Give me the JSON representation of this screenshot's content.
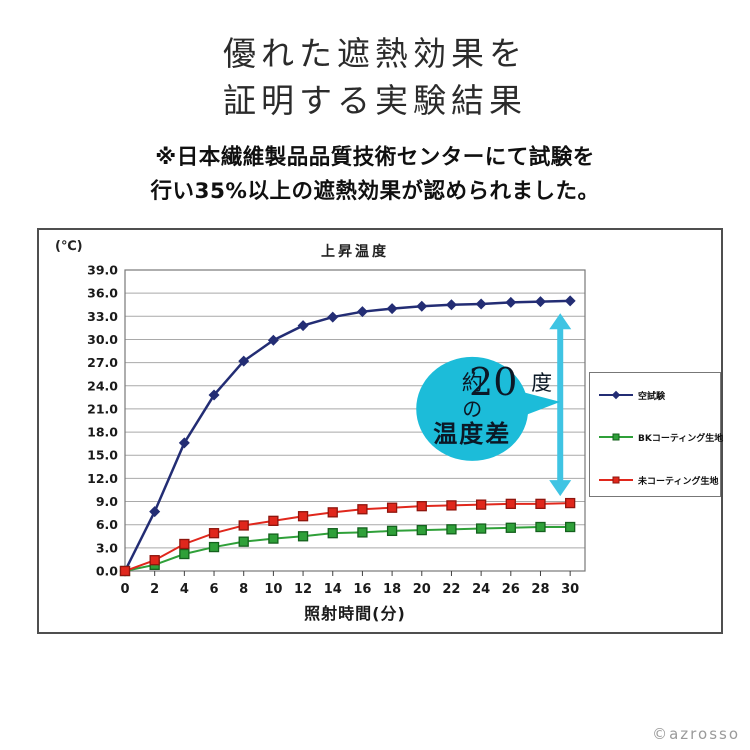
{
  "page": {
    "title_lines": [
      "優れた遮熱効果を",
      "証明する実験結果"
    ],
    "subtitle_lines": [
      "※日本繊維製品品質技術センターにて試験を",
      "行い35%以上の遮熱効果が認められました。"
    ],
    "copyright": "©azrosso"
  },
  "chart_data": {
    "type": "line",
    "title": "上昇温度",
    "y_unit_label": "(℃)",
    "xlabel": "照射時間(分)",
    "x": [
      0,
      2,
      4,
      6,
      8,
      10,
      12,
      14,
      16,
      18,
      20,
      22,
      24,
      26,
      28,
      30
    ],
    "ylim": [
      0,
      39
    ],
    "ytick_step": 3,
    "grid": "horizontal",
    "legend_position": "right",
    "series": [
      {
        "name": "空試験",
        "color": "#232d74",
        "marker": "diamond",
        "marker_edge": "#232d74",
        "values": [
          0.0,
          7.7,
          16.6,
          22.8,
          27.2,
          29.9,
          31.8,
          32.9,
          33.6,
          34.0,
          34.3,
          34.5,
          34.6,
          34.8,
          34.9,
          35.0
        ]
      },
      {
        "name": "BKコーティング生地",
        "color": "#2fa039",
        "marker": "square",
        "marker_edge": "#14611d",
        "values": [
          0.0,
          0.8,
          2.2,
          3.1,
          3.8,
          4.2,
          4.5,
          4.9,
          5.0,
          5.2,
          5.3,
          5.4,
          5.5,
          5.6,
          5.7,
          5.7
        ]
      },
      {
        "name": "未コーティング生地",
        "color": "#e0271c",
        "marker": "square",
        "marker_edge": "#8f150d",
        "values": [
          0.0,
          1.4,
          3.5,
          4.9,
          5.9,
          6.5,
          7.1,
          7.6,
          8.0,
          8.2,
          8.4,
          8.5,
          8.6,
          8.7,
          8.7,
          8.8
        ]
      }
    ],
    "annotation": {
      "bubble_lines": [
        "約20度",
        "の",
        "温度差"
      ],
      "bubble_color": "#1cbcd9",
      "text_color": "#0b1826",
      "arrow_color": "#3fc4e3",
      "arrow_x": 29.33,
      "arrow_y_top": 33.4,
      "arrow_y_bottom": 9.7,
      "bubble_x": 23.4,
      "bubble_y": 21.0
    }
  }
}
